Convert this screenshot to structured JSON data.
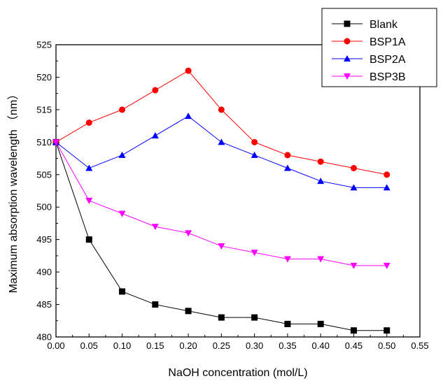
{
  "chart_data": {
    "type": "line",
    "title": "",
    "xlabel": "NaOH concentration (mol/L)",
    "ylabel": "Maximum absorption wavelength （nm）",
    "xlim": [
      0.0,
      0.55
    ],
    "ylim": [
      480,
      525
    ],
    "x_ticks": [
      "0.00",
      "0.05",
      "0.10",
      "0.15",
      "0.20",
      "0.25",
      "0.30",
      "0.35",
      "0.40",
      "0.45",
      "0.50",
      "0.55"
    ],
    "y_ticks": [
      "480",
      "485",
      "490",
      "495",
      "500",
      "505",
      "510",
      "515",
      "520",
      "525"
    ],
    "grid": false,
    "legend_position": "top-right",
    "x": [
      0.0,
      0.05,
      0.1,
      0.15,
      0.2,
      0.25,
      0.3,
      0.35,
      0.4,
      0.45,
      0.5
    ],
    "series": [
      {
        "name": "Blank",
        "color": "#000000",
        "marker": "square",
        "values": [
          510,
          495,
          487,
          485,
          484,
          483,
          483,
          482,
          482,
          481,
          481
        ]
      },
      {
        "name": "BSP1A",
        "color": "#ff0000",
        "marker": "circle",
        "values": [
          510,
          513,
          515,
          518,
          521,
          515,
          510,
          508,
          507,
          506,
          505
        ]
      },
      {
        "name": "BSP2A",
        "color": "#0000ff",
        "marker": "triangle-up",
        "values": [
          510,
          506,
          508,
          511,
          514,
          510,
          508,
          506,
          504,
          503,
          503
        ]
      },
      {
        "name": "BSP3B",
        "color": "#ff00ff",
        "marker": "triangle-down",
        "values": [
          510,
          501,
          499,
          497,
          496,
          494,
          493,
          492,
          492,
          491,
          491
        ]
      }
    ]
  }
}
